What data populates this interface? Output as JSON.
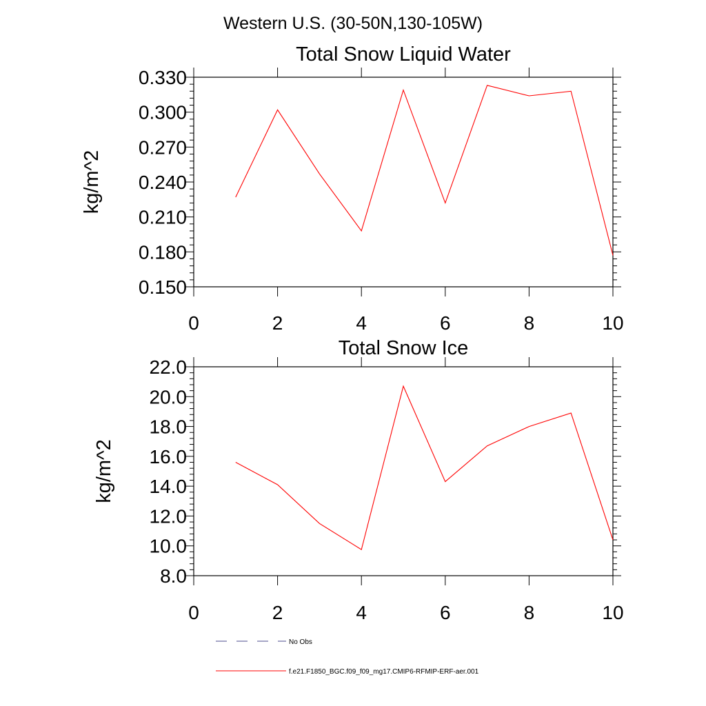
{
  "main_title": "Western U.S. (30-50N,130-105W)",
  "colors": {
    "series": "#ff0000",
    "obs": "#4b4b8c",
    "axis": "#000000"
  },
  "legend": [
    {
      "label": "No Obs",
      "style": "dashed",
      "color": "#4b4b8c"
    },
    {
      "label": "f.e21.F1850_BGC.f09_f09_mg17.CMIP6-RFMIP-ERF-aer.001",
      "style": "solid",
      "color": "#ff0000"
    }
  ],
  "chart_data": [
    {
      "type": "line",
      "title": "Total Snow Liquid Water",
      "xlabel": "",
      "ylabel": "kg/m^2",
      "xlim": [
        0,
        10
      ],
      "ylim": [
        0.15,
        0.33
      ],
      "xticks": [
        "0",
        "2",
        "4",
        "6",
        "8",
        "10"
      ],
      "yticks": [
        "0.150",
        "0.180",
        "0.210",
        "0.240",
        "0.270",
        "0.300",
        "0.330"
      ],
      "grid": false,
      "series": [
        {
          "name": "f.e21.F1850_BGC.f09_f09_mg17.CMIP6-RFMIP-ERF-aer.001",
          "x": [
            1,
            2,
            3,
            4,
            5,
            6,
            7,
            8,
            9,
            10
          ],
          "values": [
            0.227,
            0.302,
            0.247,
            0.198,
            0.319,
            0.222,
            0.323,
            0.314,
            0.318,
            0.177
          ]
        }
      ]
    },
    {
      "type": "line",
      "title": "Total Snow Ice",
      "xlabel": "",
      "ylabel": "kg/m^2",
      "xlim": [
        0,
        10
      ],
      "ylim": [
        8.0,
        22.0
      ],
      "xticks": [
        "0",
        "2",
        "4",
        "6",
        "8",
        "10"
      ],
      "yticks": [
        "8.0",
        "10.0",
        "12.0",
        "14.0",
        "16.0",
        "18.0",
        "20.0",
        "22.0"
      ],
      "grid": false,
      "series": [
        {
          "name": "f.e21.F1850_BGC.f09_f09_mg17.CMIP6-RFMIP-ERF-aer.001",
          "x": [
            1,
            2,
            3,
            4,
            5,
            6,
            7,
            8,
            9,
            10
          ],
          "values": [
            15.6,
            14.1,
            11.5,
            9.75,
            20.7,
            14.3,
            16.7,
            18.0,
            18.9,
            10.4
          ]
        }
      ]
    }
  ]
}
